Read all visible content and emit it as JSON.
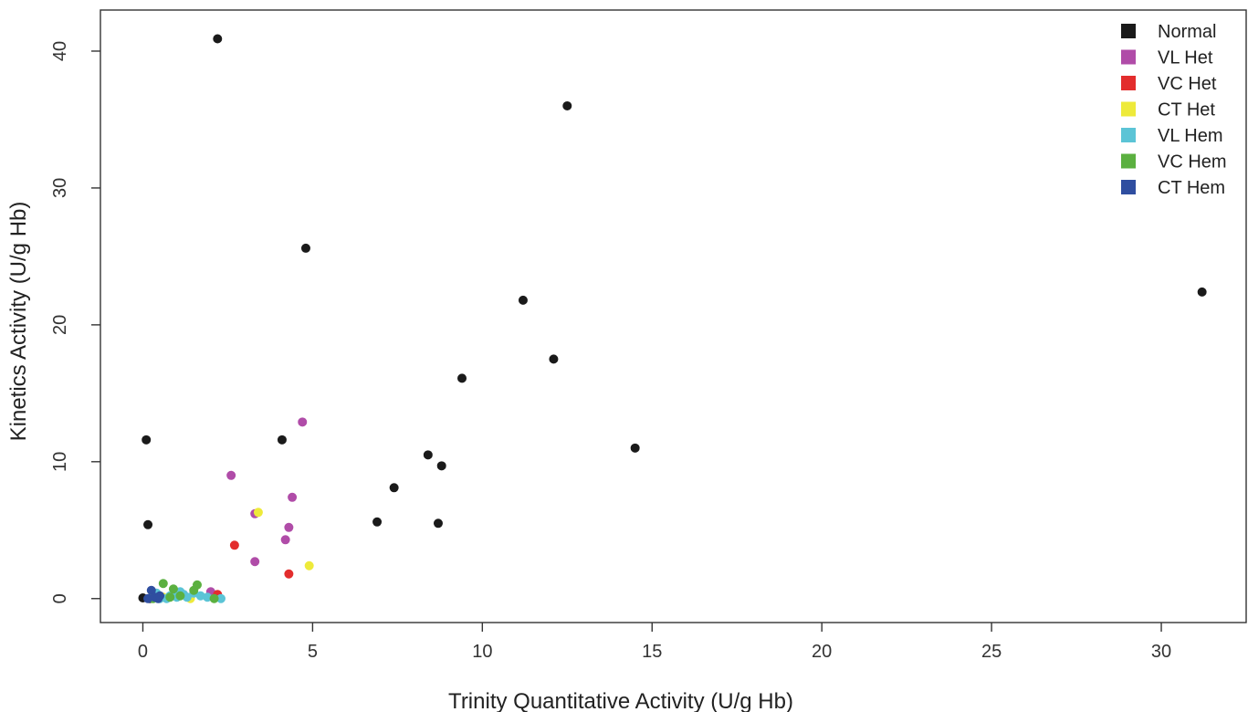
{
  "chart_data": {
    "type": "scatter",
    "title": "",
    "xlabel": "Trinity Quantitative Activity (U/g Hb)",
    "ylabel": "Kinetics Activity (U/g Hb)",
    "xlim": [
      -1.25,
      32.5
    ],
    "ylim": [
      -1.75,
      43
    ],
    "xticks": [
      0,
      5,
      10,
      15,
      20,
      25,
      30
    ],
    "yticks": [
      0,
      10,
      20,
      30,
      40
    ],
    "xtick_labels": [
      "0",
      "5",
      "10",
      "15",
      "20",
      "25",
      "30"
    ],
    "ytick_labels": [
      "0",
      "10",
      "20",
      "30",
      "40"
    ],
    "grid": false,
    "legend_position": "top-right",
    "series": [
      {
        "name": "Normal",
        "color": "#1a1a1a",
        "points": [
          [
            2.2,
            40.9
          ],
          [
            12.5,
            36.0
          ],
          [
            4.8,
            25.6
          ],
          [
            31.2,
            22.4
          ],
          [
            11.2,
            21.8
          ],
          [
            12.1,
            17.5
          ],
          [
            9.4,
            16.1
          ],
          [
            0.1,
            11.6
          ],
          [
            4.1,
            11.6
          ],
          [
            14.5,
            11.0
          ],
          [
            8.4,
            10.5
          ],
          [
            8.8,
            9.7
          ],
          [
            7.4,
            8.1
          ],
          [
            0.15,
            5.4
          ],
          [
            6.9,
            5.6
          ],
          [
            8.7,
            5.5
          ],
          [
            0.0,
            0.05
          ],
          [
            0.2,
            0.0
          ],
          [
            0.4,
            0.1
          ]
        ]
      },
      {
        "name": "VL Het",
        "color": "#b04ca8",
        "points": [
          [
            4.7,
            12.9
          ],
          [
            2.6,
            9.0
          ],
          [
            4.4,
            7.4
          ],
          [
            3.3,
            6.2
          ],
          [
            4.3,
            5.2
          ],
          [
            4.2,
            4.3
          ],
          [
            3.3,
            2.7
          ],
          [
            2.0,
            0.5
          ],
          [
            1.2,
            0.3
          ]
        ]
      },
      {
        "name": "VC Het",
        "color": "#e32d2d",
        "points": [
          [
            2.7,
            3.9
          ],
          [
            4.3,
            1.8
          ],
          [
            2.2,
            0.3
          ],
          [
            1.0,
            0.2
          ]
        ]
      },
      {
        "name": "CT Het",
        "color": "#eeea3a",
        "points": [
          [
            3.4,
            6.3
          ],
          [
            4.9,
            2.4
          ],
          [
            1.4,
            0.0
          ],
          [
            0.6,
            0.1
          ]
        ]
      },
      {
        "name": "VL Hem",
        "color": "#5bc4d6",
        "points": [
          [
            0.3,
            0.2
          ],
          [
            0.4,
            0.4
          ],
          [
            0.5,
            0.0
          ],
          [
            0.8,
            0.2
          ],
          [
            0.9,
            0.3
          ],
          [
            1.0,
            0.1
          ],
          [
            1.1,
            0.5
          ],
          [
            1.2,
            0.3
          ],
          [
            1.3,
            0.1
          ],
          [
            1.5,
            0.4
          ],
          [
            1.7,
            0.2
          ],
          [
            2.3,
            0.0
          ],
          [
            0.7,
            0.0
          ],
          [
            1.9,
            0.1
          ]
        ]
      },
      {
        "name": "VC Hem",
        "color": "#5bb040",
        "points": [
          [
            0.6,
            1.1
          ],
          [
            1.6,
            1.0
          ],
          [
            0.9,
            0.7
          ],
          [
            1.5,
            0.6
          ],
          [
            0.3,
            0.0
          ],
          [
            2.1,
            0.0
          ],
          [
            0.8,
            0.1
          ],
          [
            1.1,
            0.2
          ]
        ]
      },
      {
        "name": "CT Hem",
        "color": "#2f4ea0",
        "points": [
          [
            0.25,
            0.6
          ],
          [
            0.35,
            0.1
          ],
          [
            0.45,
            0.0
          ],
          [
            0.15,
            0.0
          ],
          [
            0.5,
            0.2
          ]
        ]
      }
    ]
  }
}
